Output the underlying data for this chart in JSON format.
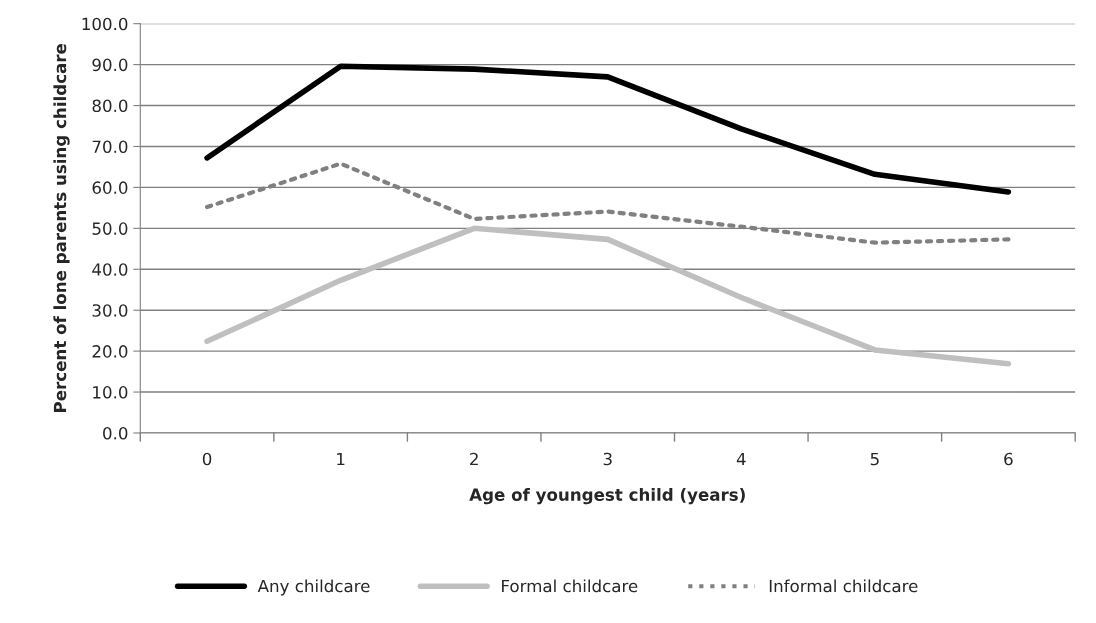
{
  "chart_data": {
    "type": "line",
    "xlabel": "Age of youngest child (years)",
    "ylabel": "Percent of lone parents using childcare",
    "categories": [
      "0",
      "1",
      "2",
      "3",
      "4",
      "5",
      "6"
    ],
    "series": [
      {
        "name": "Any childcare",
        "color": "#000000",
        "line_style": "solid",
        "values": [
          67.2,
          89.6,
          88.9,
          87.0,
          74.3,
          63.2,
          58.9
        ]
      },
      {
        "name": "Formal childcare",
        "color": "#bfbfbf",
        "line_style": "solid",
        "values": [
          22.4,
          37.3,
          50.0,
          47.3,
          33.1,
          20.3,
          16.9
        ]
      },
      {
        "name": "Informal childcare",
        "color": "#808080",
        "line_style": "dotted",
        "values": [
          55.2,
          65.8,
          52.3,
          54.1,
          50.4,
          46.5,
          47.3
        ]
      }
    ],
    "ylim": [
      0,
      100
    ],
    "yticks": [
      {
        "value": 0,
        "label": "0.0"
      },
      {
        "value": 10,
        "label": "10.0"
      },
      {
        "value": 20,
        "label": "20.0"
      },
      {
        "value": 30,
        "label": "30.0"
      },
      {
        "value": 40,
        "label": "40.0"
      },
      {
        "value": 50,
        "label": "50.0"
      },
      {
        "value": 60,
        "label": "60.0"
      },
      {
        "value": 70,
        "label": "70.0"
      },
      {
        "value": 80,
        "label": "80.0"
      },
      {
        "value": 90,
        "label": "90.0"
      },
      {
        "value": 100,
        "label": "100.0"
      }
    ],
    "grid": "y",
    "legend": "bottom"
  }
}
